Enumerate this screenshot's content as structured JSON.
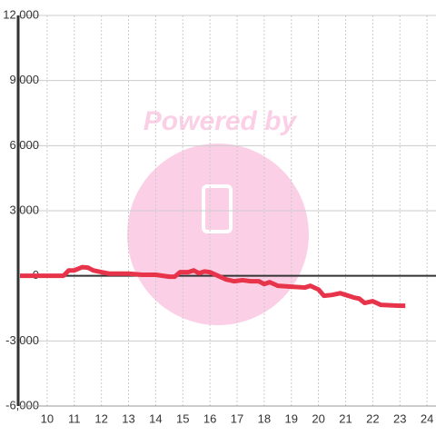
{
  "chart_data": {
    "type": "line",
    "watermark": "Powered by",
    "x": [
      9,
      10.6,
      10.8,
      11.0,
      11.3,
      11.5,
      11.7,
      12.0,
      12.3,
      13.0,
      13.5,
      14.0,
      14.5,
      14.7,
      14.9,
      15.2,
      15.4,
      15.6,
      15.8,
      16.0,
      16.3,
      16.6,
      16.9,
      17.2,
      17.5,
      17.8,
      18.0,
      18.2,
      18.5,
      19.0,
      19.5,
      19.7,
      20.0,
      20.2,
      20.5,
      20.8,
      21.0,
      21.3,
      21.5,
      21.7,
      22.0,
      22.3,
      23.0,
      23.2
    ],
    "series": [
      {
        "color": "#e8344a",
        "values": [
          0,
          0,
          250,
          250,
          400,
          380,
          250,
          170,
          100,
          100,
          50,
          50,
          -40,
          -40,
          170,
          170,
          250,
          120,
          200,
          170,
          0,
          -170,
          -250,
          -200,
          -250,
          -250,
          -380,
          -290,
          -460,
          -500,
          -540,
          -460,
          -630,
          -920,
          -880,
          -800,
          -880,
          -1000,
          -1050,
          -1250,
          -1170,
          -1340,
          -1380,
          -1380
        ]
      }
    ],
    "xlim": [
      9,
      24.33
    ],
    "xticks": [
      10,
      11,
      12,
      13,
      14,
      15,
      16,
      17,
      18,
      19,
      20,
      21,
      22,
      23,
      24
    ],
    "ylim": [
      -6000,
      12000
    ],
    "yticks": [
      {
        "value": -6000,
        "label": "-6,000"
      },
      {
        "value": -3000,
        "label": "-3,000"
      },
      0,
      {
        "value": 3000,
        "label": "3,000"
      },
      {
        "value": 6000,
        "label": "6,000"
      },
      {
        "value": 9000,
        "label": "9,000"
      },
      {
        "value": 12000,
        "label": "12,000"
      }
    ],
    "grid": true
  }
}
